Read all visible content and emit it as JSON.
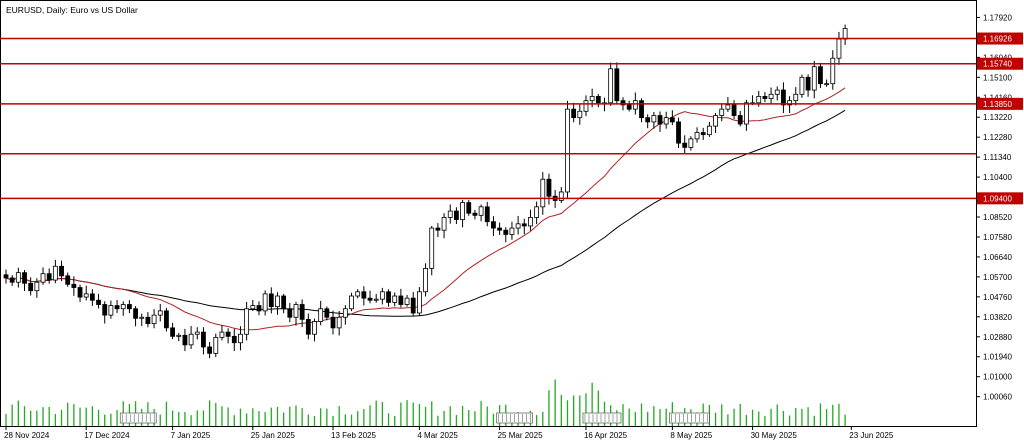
{
  "chart_data": {
    "type": "candlestick",
    "title": "EURUSD, Daily:  Euro vs US Dollar",
    "price_range": [
      0.9962,
      1.1827
    ],
    "y_ticks": [
      "1.17920",
      "1.16040",
      "1.15100",
      "1.14160",
      "1.13220",
      "1.12280",
      "1.11340",
      "1.10400",
      "1.09400",
      "1.08520",
      "1.07580",
      "1.06640",
      "1.05700",
      "1.04760",
      "1.03820",
      "1.02880",
      "1.01940",
      "1.01000",
      "1.00060"
    ],
    "x_ticks": [
      {
        "label": "28 Nov 2024",
        "bar": 0
      },
      {
        "label": "17 Dec 2024",
        "bar": 13
      },
      {
        "label": "7 Jan 2025",
        "bar": 27
      },
      {
        "label": "25 Jan 2025",
        "bar": 40
      },
      {
        "label": "13 Feb 2025",
        "bar": 53
      },
      {
        "label": "4 Mar 2025",
        "bar": 67
      },
      {
        "label": "25 Mar 2025",
        "bar": 80
      },
      {
        "label": "16 Apr 2025",
        "bar": 94
      },
      {
        "label": "8 May 2025",
        "bar": 108
      },
      {
        "label": "30 May 2025",
        "bar": 121
      },
      {
        "label": "23 Jun 2025",
        "bar": 137
      }
    ],
    "horizontal_levels": [
      "1.16926",
      "1.15740",
      "1.13850",
      "1.11500",
      "1.09400"
    ],
    "price_tags": [
      "1.16926",
      "1.15740",
      "1.13850",
      "1.09400"
    ],
    "closes": [
      1.0565,
      1.0545,
      1.059,
      1.054,
      1.0505,
      1.0545,
      1.0585,
      1.0555,
      1.062,
      1.0575,
      1.0535,
      1.052,
      1.0475,
      1.049,
      1.046,
      1.044,
      1.039,
      1.0435,
      1.042,
      1.044,
      1.042,
      1.0375,
      1.038,
      1.035,
      1.039,
      1.041,
      1.033,
      1.029,
      1.0295,
      1.025,
      1.03,
      1.031,
      1.024,
      1.021,
      1.0285,
      1.031,
      1.029,
      1.026,
      1.03,
      1.042,
      1.0435,
      1.041,
      1.049,
      1.043,
      1.048,
      1.042,
      1.038,
      1.044,
      1.037,
      1.03,
      1.036,
      1.042,
      1.038,
      1.033,
      1.038,
      1.042,
      1.048,
      1.05,
      1.047,
      1.046,
      1.0465,
      1.05,
      1.045,
      1.048,
      1.044,
      1.047,
      1.04,
      1.05,
      1.061,
      1.08,
      1.079,
      1.085,
      1.088,
      1.084,
      1.092,
      1.087,
      1.086,
      1.09,
      1.083,
      1.08,
      1.079,
      1.077,
      1.08,
      1.082,
      1.081,
      1.085,
      1.09,
      1.103,
      1.095,
      1.093,
      1.097,
      1.136,
      1.132,
      1.135,
      1.14,
      1.142,
      1.139,
      1.139,
      1.155,
      1.14,
      1.138,
      1.136,
      1.14,
      1.132,
      1.13,
      1.133,
      1.129,
      1.132,
      1.13,
      1.12,
      1.118,
      1.122,
      1.125,
      1.124,
      1.128,
      1.133,
      1.136,
      1.138,
      1.133,
      1.129,
      1.139,
      1.139,
      1.142,
      1.141,
      1.143,
      1.145,
      1.138,
      1.14,
      1.143,
      1.151,
      1.145,
      1.156,
      1.148,
      1.148,
      1.16,
      1.169,
      1.174
    ]
  }
}
